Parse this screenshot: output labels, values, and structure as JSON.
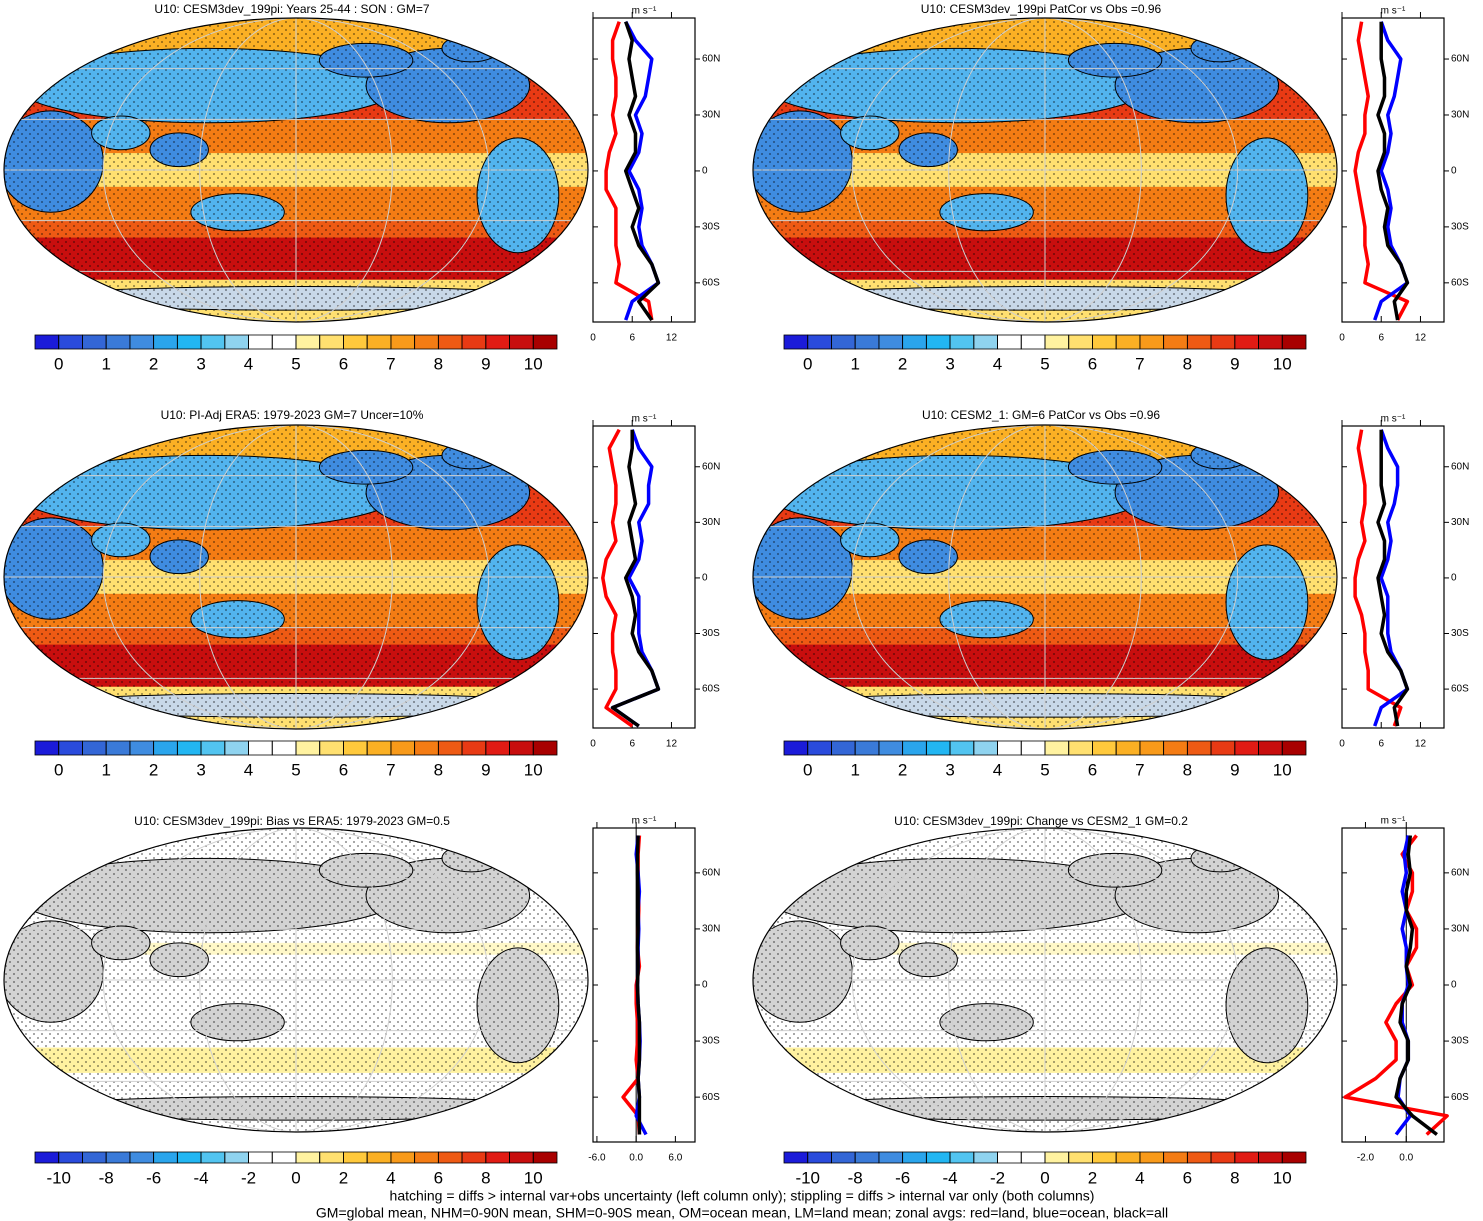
{
  "chart_data": [
    {
      "type": "zonal_line",
      "title": "U10: CESM3dev_199pi: Years 25-44 : SON : GM=7",
      "x_label": "m s⁻¹",
      "latitudes": [
        -80,
        -70,
        -60,
        -50,
        -40,
        -30,
        -20,
        -10,
        0,
        10,
        20,
        30,
        40,
        50,
        60,
        70,
        80
      ],
      "series": [
        {
          "color": "#ff0000",
          "values": [
            9,
            8.5,
            3.5,
            4,
            3.5,
            3.5,
            3.5,
            2,
            2,
            2.5,
            3.5,
            3,
            3.5,
            3.5,
            3,
            3,
            4
          ]
        },
        {
          "color": "#0000ff",
          "values": [
            5,
            6,
            10,
            9,
            7.5,
            7,
            7.5,
            7,
            5.5,
            7,
            7.5,
            6.5,
            8,
            8.5,
            9,
            6.5,
            5
          ]
        },
        {
          "color": "#000000",
          "values": [
            9,
            7,
            10,
            9,
            7,
            6,
            7,
            6,
            5,
            6.5,
            6.5,
            5.5,
            6.5,
            6,
            5.5,
            6,
            5
          ]
        }
      ],
      "xlim": [
        0,
        15.6
      ],
      "xticks": [
        0,
        6,
        12
      ],
      "ylim": [
        -81,
        82
      ],
      "yticks": [
        {
          "value": 60,
          "label": "60N"
        },
        {
          "value": 30,
          "label": "30N"
        },
        0,
        {
          "value": -30,
          "label": "30S"
        },
        {
          "value": -60,
          "label": "60S"
        }
      ],
      "colorbar": {
        "levels": [
          0,
          0.5,
          1,
          1.5,
          2,
          2.5,
          3,
          3.5,
          4,
          4.5,
          5,
          5.5,
          6,
          6.5,
          7,
          7.5,
          8,
          8.5,
          9,
          9.5,
          10
        ],
        "ticks": [
          0,
          1,
          2,
          3,
          4,
          5,
          6,
          7,
          8,
          9,
          10
        ],
        "colors": [
          "#1b1bd9",
          "#2a4bdc",
          "#3366d6",
          "#3a7ad8",
          "#3f8ce0",
          "#2aa5ec",
          "#22b6f2",
          "#52c4f0",
          "#8fd3ef",
          "#ffffff",
          "#ffffff",
          "#fff2a0",
          "#ffe070",
          "#ffc93c",
          "#fbb024",
          "#f89a1a",
          "#f47c14",
          "#ee5a14",
          "#e83a14",
          "#e11b14",
          "#c80e0e",
          "#a80000"
        ]
      }
    },
    {
      "type": "zonal_line",
      "title": "U10: CESM3dev_199pi PatCor vs Obs =0.96",
      "x_label": "m s⁻¹",
      "latitudes": [
        -80,
        -70,
        -60,
        -50,
        -40,
        -30,
        -20,
        -10,
        0,
        10,
        20,
        30,
        40,
        50,
        60,
        70,
        80
      ],
      "series": [
        {
          "color": "#ff0000",
          "values": [
            8.5,
            10,
            3.5,
            4,
            3.5,
            3.5,
            3,
            2.5,
            2,
            2.5,
            3.5,
            3.5,
            4,
            3.5,
            3,
            2.5,
            3
          ]
        },
        {
          "color": "#0000ff",
          "values": [
            5,
            6,
            10,
            9,
            7.5,
            7,
            7.5,
            7,
            6,
            7,
            7.5,
            7,
            8,
            8.5,
            9,
            7,
            6
          ]
        },
        {
          "color": "#000000",
          "values": [
            8.5,
            8,
            10,
            9,
            7,
            6.5,
            7,
            6,
            5.5,
            6.5,
            6.5,
            5.5,
            6.5,
            6.5,
            6,
            6,
            6
          ]
        }
      ],
      "xlim": [
        0,
        15.6
      ],
      "xticks": [
        0,
        6,
        12
      ],
      "ylim": [
        -81,
        82
      ],
      "yticks": [
        {
          "value": 60,
          "label": "60N"
        },
        {
          "value": 30,
          "label": "30N"
        },
        0,
        {
          "value": -30,
          "label": "30S"
        },
        {
          "value": -60,
          "label": "60S"
        }
      ],
      "colorbar": {
        "levels": [
          0,
          0.5,
          1,
          1.5,
          2,
          2.5,
          3,
          3.5,
          4,
          4.5,
          5,
          5.5,
          6,
          6.5,
          7,
          7.5,
          8,
          8.5,
          9,
          9.5,
          10
        ],
        "ticks": [
          0,
          1,
          2,
          3,
          4,
          5,
          6,
          7,
          8,
          9,
          10
        ],
        "colors": [
          "#1b1bd9",
          "#2a4bdc",
          "#3366d6",
          "#3a7ad8",
          "#3f8ce0",
          "#2aa5ec",
          "#22b6f2",
          "#52c4f0",
          "#8fd3ef",
          "#ffffff",
          "#ffffff",
          "#fff2a0",
          "#ffe070",
          "#ffc93c",
          "#fbb024",
          "#f89a1a",
          "#f47c14",
          "#ee5a14",
          "#e83a14",
          "#e11b14",
          "#c80e0e",
          "#a80000"
        ]
      }
    },
    {
      "type": "zonal_line",
      "title": "U10: PI-Adj ERA5: 1979-2023 GM=7 Uncer=10%",
      "x_label": "m s⁻¹",
      "latitudes": [
        -80,
        -70,
        -60,
        -50,
        -40,
        -30,
        -20,
        -10,
        0,
        10,
        20,
        30,
        40,
        50,
        60,
        70,
        80
      ],
      "series": [
        {
          "color": "#ff0000",
          "values": [
            6,
            2,
            3.5,
            3.5,
            3,
            3,
            3.5,
            2,
            1.5,
            2,
            3.5,
            3,
            3.5,
            3.5,
            3,
            2.5,
            4
          ]
        },
        {
          "color": "#0000ff",
          "values": [
            7,
            3,
            10,
            9,
            7.5,
            7,
            7,
            7,
            5.5,
            7,
            7.5,
            7,
            8.5,
            8.5,
            9,
            7,
            6
          ]
        },
        {
          "color": "#000000",
          "values": [
            7,
            3,
            10,
            9,
            7,
            6,
            6.5,
            6,
            5,
            6.5,
            6,
            5.5,
            6.5,
            6,
            5.5,
            6,
            6
          ]
        }
      ],
      "xlim": [
        0,
        15.6
      ],
      "xticks": [
        0,
        6,
        12
      ],
      "ylim": [
        -81,
        82
      ],
      "yticks": [
        {
          "value": 60,
          "label": "60N"
        },
        {
          "value": 30,
          "label": "30N"
        },
        0,
        {
          "value": -30,
          "label": "30S"
        },
        {
          "value": -60,
          "label": "60S"
        }
      ],
      "colorbar": {
        "levels": [
          0,
          0.5,
          1,
          1.5,
          2,
          2.5,
          3,
          3.5,
          4,
          4.5,
          5,
          5.5,
          6,
          6.5,
          7,
          7.5,
          8,
          8.5,
          9,
          9.5,
          10
        ],
        "ticks": [
          0,
          1,
          2,
          3,
          4,
          5,
          6,
          7,
          8,
          9,
          10
        ],
        "colors": [
          "#1b1bd9",
          "#2a4bdc",
          "#3366d6",
          "#3a7ad8",
          "#3f8ce0",
          "#2aa5ec",
          "#22b6f2",
          "#52c4f0",
          "#8fd3ef",
          "#ffffff",
          "#ffffff",
          "#fff2a0",
          "#ffe070",
          "#ffc93c",
          "#fbb024",
          "#f89a1a",
          "#f47c14",
          "#ee5a14",
          "#e83a14",
          "#e11b14",
          "#c80e0e",
          "#a80000"
        ]
      }
    },
    {
      "type": "zonal_line",
      "title": "U10: CESM2_1: GM=6 PatCor vs Obs =0.96",
      "x_label": "m s⁻¹",
      "latitudes": [
        -80,
        -70,
        -60,
        -50,
        -40,
        -30,
        -20,
        -10,
        0,
        10,
        20,
        30,
        40,
        50,
        60,
        70,
        80
      ],
      "series": [
        {
          "color": "#ff0000",
          "values": [
            8,
            9,
            4,
            4,
            3.5,
            3.5,
            3,
            2,
            2,
            2.5,
            3.5,
            3,
            3.5,
            3.5,
            3,
            2.5,
            3
          ]
        },
        {
          "color": "#0000ff",
          "values": [
            5,
            6,
            10,
            9,
            7.5,
            7,
            7,
            7,
            6,
            7,
            7.5,
            7,
            8,
            8.5,
            8.5,
            7,
            6
          ]
        },
        {
          "color": "#000000",
          "values": [
            8.5,
            8,
            10,
            9,
            7,
            6,
            6.5,
            6,
            5.5,
            6.5,
            6.5,
            5.5,
            6.5,
            6,
            6,
            6,
            6
          ]
        }
      ],
      "xlim": [
        0,
        15.6
      ],
      "xticks": [
        0,
        6,
        12
      ],
      "ylim": [
        -81,
        82
      ],
      "yticks": [
        {
          "value": 60,
          "label": "60N"
        },
        {
          "value": 30,
          "label": "30N"
        },
        0,
        {
          "value": -30,
          "label": "30S"
        },
        {
          "value": -60,
          "label": "60S"
        }
      ],
      "colorbar": {
        "levels": [
          0,
          0.5,
          1,
          1.5,
          2,
          2.5,
          3,
          3.5,
          4,
          4.5,
          5,
          5.5,
          6,
          6.5,
          7,
          7.5,
          8,
          8.5,
          9,
          9.5,
          10
        ],
        "ticks": [
          0,
          1,
          2,
          3,
          4,
          5,
          6,
          7,
          8,
          9,
          10
        ],
        "colors": [
          "#1b1bd9",
          "#2a4bdc",
          "#3366d6",
          "#3a7ad8",
          "#3f8ce0",
          "#2aa5ec",
          "#22b6f2",
          "#52c4f0",
          "#8fd3ef",
          "#ffffff",
          "#ffffff",
          "#fff2a0",
          "#ffe070",
          "#ffc93c",
          "#fbb024",
          "#f89a1a",
          "#f47c14",
          "#ee5a14",
          "#e83a14",
          "#e11b14",
          "#c80e0e",
          "#a80000"
        ]
      }
    },
    {
      "type": "zonal_line",
      "title": "U10: CESM3dev_199pi: Bias vs ERA5: 1979-2023  GM=0.5",
      "x_label": "m s⁻¹",
      "latitudes": [
        -80,
        -70,
        -60,
        -50,
        -40,
        -30,
        -20,
        -10,
        0,
        10,
        20,
        30,
        40,
        50,
        60,
        70,
        80
      ],
      "series": [
        {
          "color": "#ff0000",
          "values": [
            0.5,
            0.3,
            -2,
            0.3,
            0,
            0.2,
            0.2,
            0,
            0,
            0.5,
            0.2,
            0.3,
            0.4,
            0.4,
            0.3,
            0.3,
            0.5
          ]
        },
        {
          "color": "#0000ff",
          "values": [
            1.5,
            0,
            0.5,
            0.3,
            0.5,
            0.6,
            0.5,
            0.3,
            0.2,
            0.3,
            0.3,
            0.4,
            0.3,
            0.5,
            0.3,
            0,
            0.3
          ]
        },
        {
          "color": "#000000",
          "values": [
            0.5,
            0.5,
            0.5,
            0.3,
            0.5,
            0.5,
            0.5,
            0.3,
            0.2,
            0.3,
            0.2,
            0.3,
            0.3,
            0.3,
            0.2,
            0.2,
            0.3
          ]
        }
      ],
      "xlim": [
        -6.6,
        9
      ],
      "xticks": [
        {
          "value": -6,
          "label": "-6.0"
        },
        {
          "value": 0,
          "label": "0.0"
        },
        {
          "value": 6,
          "label": "6.0"
        }
      ],
      "ylim": [
        -84,
        84
      ],
      "yticks": [
        {
          "value": 60,
          "label": "60N"
        },
        {
          "value": 30,
          "label": "30N"
        },
        0,
        {
          "value": -30,
          "label": "30S"
        },
        {
          "value": -60,
          "label": "60S"
        }
      ],
      "colorbar": {
        "levels": [
          -10,
          -9,
          -8,
          -7,
          -6,
          -5,
          -4,
          -3,
          -2,
          -1,
          0,
          1,
          2,
          3,
          4,
          5,
          6,
          7,
          8,
          9,
          10
        ],
        "ticks": [
          -10,
          -8,
          -6,
          -4,
          -2,
          0,
          2,
          4,
          6,
          8,
          10
        ],
        "colors": [
          "#1b1bd9",
          "#2a4bdc",
          "#3366d6",
          "#3a7ad8",
          "#3f8ce0",
          "#2aa5ec",
          "#22b6f2",
          "#52c4f0",
          "#8fd3ef",
          "#ffffff",
          "#ffffff",
          "#fff2a0",
          "#ffe070",
          "#ffc93c",
          "#fbb024",
          "#f89a1a",
          "#f47c14",
          "#ee5a14",
          "#e83a14",
          "#e11b14",
          "#c80e0e",
          "#a80000"
        ]
      }
    },
    {
      "type": "zonal_line",
      "title": "U10: CESM3dev_199pi: Change vs CESM2_1 GM=0.2",
      "x_label": "m s⁻¹",
      "latitudes": [
        -80,
        -70,
        -60,
        -50,
        -40,
        -30,
        -20,
        -10,
        0,
        10,
        20,
        30,
        40,
        50,
        60,
        70,
        80
      ],
      "series": [
        {
          "color": "#ff0000",
          "values": [
            1.0,
            2.0,
            -3.0,
            -1.5,
            -0.5,
            -0.5,
            -1.0,
            -0.5,
            0.3,
            0,
            0.5,
            0.5,
            0,
            0.3,
            0.3,
            -0.2,
            0.5
          ]
        },
        {
          "color": "#0000ff",
          "values": [
            -0.5,
            0.2,
            -0.4,
            -0.3,
            0.1,
            0.1,
            -0.2,
            -0.2,
            0.1,
            0,
            0,
            -0.2,
            0,
            -0.2,
            0,
            -0.1,
            0.1
          ]
        },
        {
          "color": "#000000",
          "values": [
            1.5,
            0.3,
            -0.5,
            -0.3,
            0.1,
            0.1,
            -0.3,
            -0.2,
            0.2,
            0,
            0.2,
            0.3,
            0,
            0,
            0.2,
            0.1,
            0.2
          ]
        }
      ],
      "xlim": [
        -3.15,
        1.85
      ],
      "xticks": [
        {
          "value": -2,
          "label": "-2.0"
        },
        {
          "value": 0,
          "label": "0.0"
        }
      ],
      "ylim": [
        -84,
        84
      ],
      "yticks": [
        {
          "value": 60,
          "label": "60N"
        },
        {
          "value": 30,
          "label": "30N"
        },
        0,
        {
          "value": -30,
          "label": "30S"
        },
        {
          "value": -60,
          "label": "60S"
        }
      ],
      "colorbar": {
        "levels": [
          -10,
          -9,
          -8,
          -7,
          -6,
          -5,
          -4,
          -3,
          -2,
          -1,
          0,
          1,
          2,
          3,
          4,
          5,
          6,
          7,
          8,
          9,
          10
        ],
        "ticks": [
          -10,
          -8,
          -6,
          -4,
          -2,
          0,
          2,
          4,
          6,
          8,
          10
        ],
        "colors": [
          "#1b1bd9",
          "#2a4bdc",
          "#3366d6",
          "#3a7ad8",
          "#3f8ce0",
          "#2aa5ec",
          "#22b6f2",
          "#52c4f0",
          "#8fd3ef",
          "#ffffff",
          "#ffffff",
          "#fff2a0",
          "#ffe070",
          "#ffc93c",
          "#fbb024",
          "#f89a1a",
          "#f47c14",
          "#ee5a14",
          "#e83a14",
          "#e11b14",
          "#c80e0e",
          "#a80000"
        ]
      }
    }
  ],
  "notes": [
    "hatching = diffs > internal var+obs uncertainty (left column only); stippling = diffs > internal var only (both columns)",
    "GM=global mean, NHM=0-90N mean, SHM=0-90S mean, OM=ocean mean, LM=land mean; zonal avgs: red=land, blue=ocean, black=all"
  ]
}
